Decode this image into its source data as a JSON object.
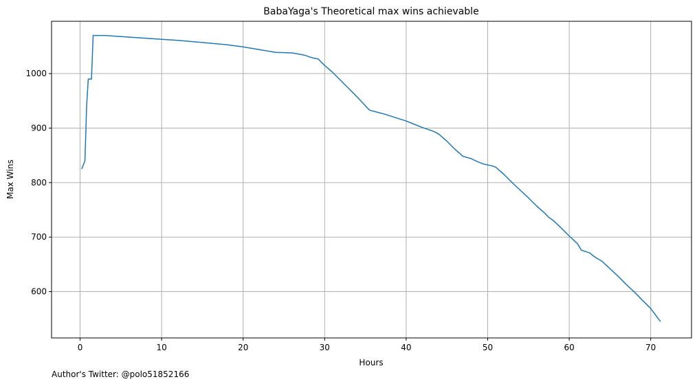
{
  "chart_data": {
    "type": "line",
    "title": "BabaYaga's Theoretical max wins achievable",
    "xlabel": "Hours",
    "ylabel": "Max Wins",
    "xlim": [
      -3.5,
      75
    ],
    "ylim": [
      515,
      1096
    ],
    "xticks": [
      0,
      10,
      20,
      30,
      40,
      50,
      60,
      70
    ],
    "yticks": [
      600,
      700,
      800,
      900,
      1000
    ],
    "grid": true,
    "line_color": "#1f77b4",
    "series": [
      {
        "x": [
          0.2,
          0.6,
          0.8,
          1.0,
          1.2,
          1.4,
          1.6,
          2.0,
          3.0,
          5.0,
          8.0,
          10.0,
          12.0,
          15.0,
          18.0,
          20.0,
          22.0,
          24.0,
          26.0,
          27.5,
          28.5,
          29.2,
          30.0,
          31.0,
          32.0,
          33.0,
          34.0,
          35.0,
          35.5,
          36.5,
          37.5,
          38.5,
          40.0,
          41.0,
          42.0,
          43.0,
          43.5,
          44.0,
          45.0,
          46.0,
          47.0,
          48.0,
          48.5,
          49.5,
          50.5,
          51.0,
          52.0,
          53.0,
          54.0,
          55.0,
          56.0,
          57.0,
          57.5,
          58.0,
          59.0,
          60.0,
          61.0,
          61.5,
          62.5,
          63.0,
          63.5,
          64.0,
          65.0,
          66.0,
          67.0,
          68.0,
          69.0,
          70.0,
          71.2
        ],
        "y": [
          825,
          840,
          940,
          990,
          990,
          990,
          1070,
          1070,
          1070,
          1068,
          1065,
          1063,
          1061,
          1057,
          1053,
          1049,
          1044,
          1039,
          1038,
          1034,
          1029,
          1027,
          1015,
          1002,
          987,
          972,
          957,
          941,
          933,
          929,
          925,
          920,
          913,
          907,
          901,
          896,
          893,
          889,
          876,
          861,
          848,
          844,
          840,
          834,
          831,
          828,
          815,
          800,
          786,
          772,
          757,
          744,
          736,
          731,
          717,
          702,
          688,
          676,
          671,
          665,
          660,
          656,
          642,
          628,
          613,
          599,
          584,
          569,
          545
        ]
      }
    ]
  },
  "footer": {
    "note": "Author's Twitter: @polo51852166"
  }
}
